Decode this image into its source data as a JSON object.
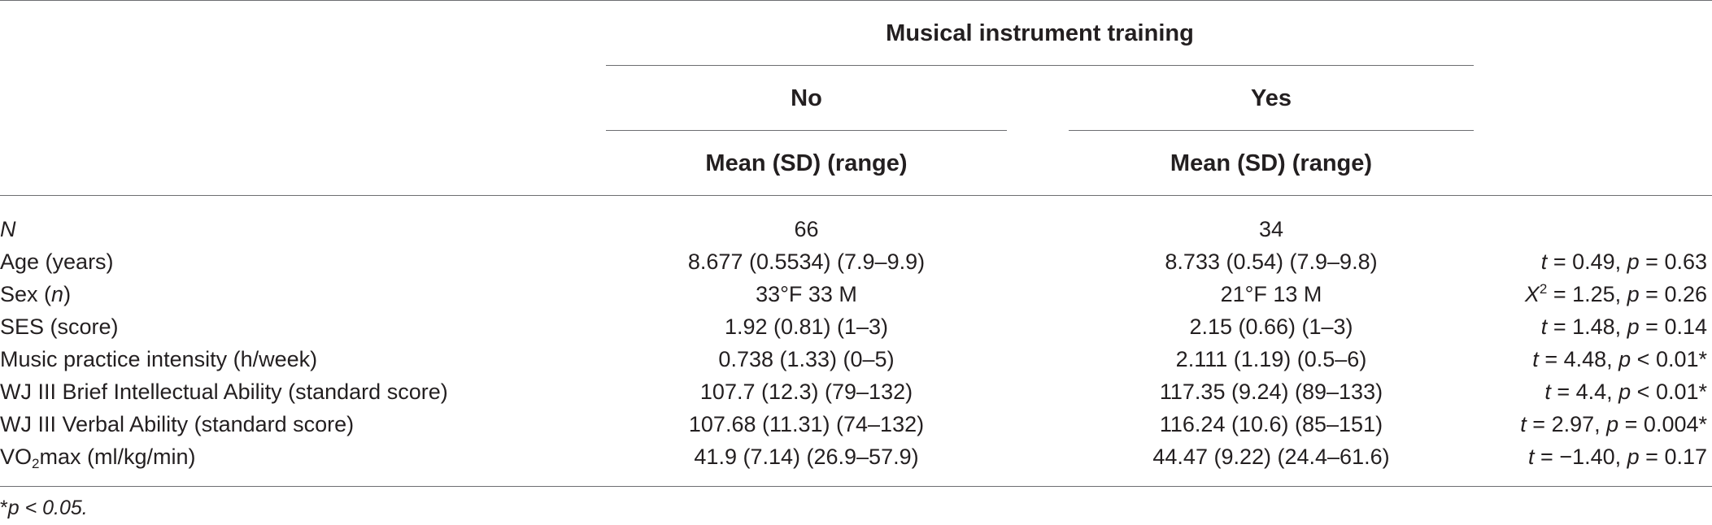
{
  "header": {
    "group_title": "Musical instrument training",
    "col_no": "No",
    "col_yes": "Yes",
    "sub_no": "Mean (SD) (range)",
    "sub_yes": "Mean (SD) (range)"
  },
  "rows": [
    {
      "label": "N",
      "no": "66",
      "yes": "34",
      "stat": ""
    },
    {
      "label": "Age (years)",
      "no": "8.677 (0.5534) (7.9–9.9)",
      "yes": "8.733 (0.54) (7.9–9.8)",
      "stat_letter": "t",
      "stat_rest": " = 0.49, ",
      "p_letter": "p",
      "p_rest": " = 0.63"
    },
    {
      "label": "Sex (",
      "label_it": "n",
      "label_end": ")",
      "no": "33°F 33 M",
      "yes": "21°F 13 M",
      "stat_letter": "X",
      "stat_sup": "2",
      "stat_rest": " = 1.25, ",
      "p_letter": "p",
      "p_rest": " = 0.26"
    },
    {
      "label": "SES (score)",
      "no": "1.92 (0.81) (1–3)",
      "yes": "2.15 (0.66) (1–3)",
      "stat_letter": "t",
      "stat_rest": " = 1.48, ",
      "p_letter": "p",
      "p_rest": " = 0.14"
    },
    {
      "label": "Music practice intensity (h/week)",
      "no": "0.738 (1.33) (0–5)",
      "yes": "2.111 (1.19) (0.5–6)",
      "stat_letter": "t",
      "stat_rest": " = 4.48, ",
      "p_letter": "p",
      "p_rest": " < 0.01*"
    },
    {
      "label": "WJ III Brief Intellectual Ability (standard score)",
      "no": "107.7 (12.3) (79–132)",
      "yes": "117.35 (9.24) (89–133)",
      "stat_letter": "t",
      "stat_rest": " = 4.4, ",
      "p_letter": "p",
      "p_rest": " < 0.01*"
    },
    {
      "label": "WJ III Verbal Ability (standard score)",
      "no": "107.68 (11.31) (74–132)",
      "yes": "116.24 (10.6) (85–151)",
      "stat_letter": "t",
      "stat_rest": " = 2.97, ",
      "p_letter": "p",
      "p_rest": " = 0.004*"
    },
    {
      "label": "VO",
      "label_sub": "2",
      "label_end": "max (ml/kg/min)",
      "no": "41.9 (7.14) (26.9–57.9)",
      "yes": "44.47 (9.22) (24.4–61.6)",
      "stat_letter": "t",
      "stat_rest": " = −1.40, ",
      "p_letter": "p",
      "p_rest": " = 0.17"
    }
  ],
  "footnote": {
    "marker": "*",
    "text": "p < 0.05."
  }
}
